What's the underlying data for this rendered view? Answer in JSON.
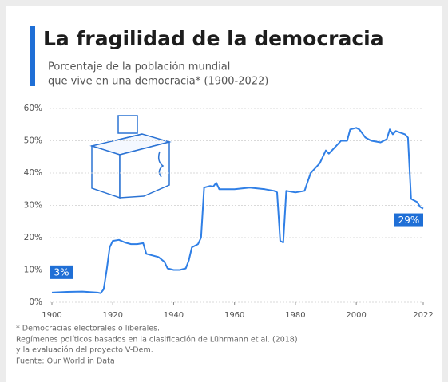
{
  "chart_data": {
    "type": "line",
    "title": "La fragilidad de la democracia",
    "subtitle": [
      "Porcentaje de la población mundial",
      "que vive en una democracia* (1900-2022)"
    ],
    "x": [
      1900,
      1905,
      1910,
      1915,
      1916,
      1917,
      1918,
      1919,
      1920,
      1922,
      1924,
      1926,
      1928,
      1930,
      1931,
      1933,
      1935,
      1937,
      1938,
      1940,
      1942,
      1944,
      1945,
      1946,
      1948,
      1949,
      1950,
      1952,
      1953,
      1954,
      1955,
      1960,
      1965,
      1970,
      1973,
      1974,
      1975,
      1976,
      1977,
      1980,
      1983,
      1985,
      1988,
      1990,
      1991,
      1993,
      1995,
      1997,
      1998,
      2000,
      2001,
      2003,
      2005,
      2008,
      2010,
      2011,
      2012,
      2013,
      2016,
      2017,
      2018,
      2019,
      2020,
      2021,
      2022
    ],
    "values": [
      3,
      3.2,
      3.3,
      3,
      2.8,
      4,
      10,
      17,
      19,
      19.3,
      18.5,
      18,
      18,
      18.3,
      15,
      14.5,
      14,
      12.5,
      10.5,
      10,
      10,
      10.5,
      13,
      17,
      18,
      20,
      35.5,
      36,
      35.8,
      37,
      35,
      35,
      35.5,
      35,
      34.5,
      34,
      19,
      18.5,
      34.5,
      34,
      34.5,
      40,
      43,
      47,
      46,
      48,
      50,
      50,
      53.5,
      54,
      53.5,
      51,
      50,
      49.5,
      50.5,
      53.5,
      52,
      53,
      52,
      51,
      32,
      31.5,
      31,
      29.5,
      29
    ],
    "value_labels": [
      "3%",
      null,
      null,
      null,
      null,
      null,
      null,
      null,
      null,
      null,
      null,
      null,
      null,
      null,
      null,
      null,
      null,
      null,
      null,
      null,
      null,
      null,
      null,
      null,
      null,
      null,
      null,
      null,
      null,
      null,
      null,
      null,
      null,
      null,
      null,
      null,
      null,
      null,
      null,
      null,
      null,
      null,
      null,
      null,
      null,
      null,
      null,
      null,
      null,
      null,
      null,
      null,
      null,
      null,
      null,
      null,
      null,
      null,
      null,
      null,
      null,
      null,
      null,
      null,
      "29%"
    ],
    "color": "#2f7fe6",
    "xlim": [
      1900,
      2022
    ],
    "xticks": [
      1900,
      1920,
      1940,
      1960,
      1980,
      2000,
      2022
    ],
    "ylim": [
      0,
      60
    ],
    "yticks": [
      {
        "value": 0,
        "label": "0%"
      },
      {
        "value": 10,
        "label": "10%"
      },
      {
        "value": 20,
        "label": "20%"
      },
      {
        "value": 30,
        "label": "30%"
      },
      {
        "value": 40,
        "label": "40%"
      },
      {
        "value": 50,
        "label": "50%"
      },
      {
        "value": 60,
        "label": "60%"
      }
    ],
    "grid": true,
    "notes": [
      "* Democracias electorales o liberales.",
      "Regímenes políticos basados en la clasificación de Lührmann et al. (2018)",
      "y la evaluación del proyecto V-Dem.",
      "Fuente: Our World in Data"
    ]
  }
}
